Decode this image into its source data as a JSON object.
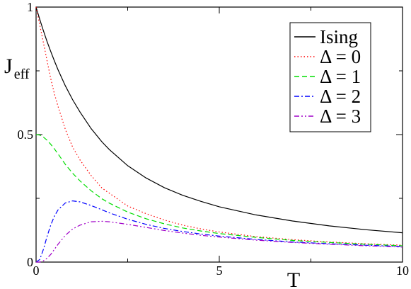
{
  "chart_data": {
    "type": "line",
    "xlabel": "T",
    "ylabel": "J",
    "ylabel_sub": "eff",
    "xlim": [
      0,
      10
    ],
    "ylim": [
      0,
      1
    ],
    "x_ticks": [
      {
        "value": 0,
        "label": "0"
      },
      {
        "value": 5,
        "label": "5"
      },
      {
        "value": 10,
        "label": "10"
      }
    ],
    "y_ticks": [
      {
        "value": 0,
        "label": "0"
      },
      {
        "value": 0.5,
        "label": "0.5"
      },
      {
        "value": 1,
        "label": "1"
      }
    ],
    "grid": false,
    "legend_position": "top-right",
    "x": [
      0,
      0.1,
      0.2,
      0.3,
      0.4,
      0.5,
      0.6,
      0.8,
      1.0,
      1.2,
      1.5,
      1.8,
      2.0,
      2.5,
      3.0,
      3.5,
      4.0,
      4.5,
      5.0,
      6.0,
      7.0,
      8.0,
      9.0,
      10.0
    ],
    "series": [
      {
        "name": "Ising",
        "color": "#000000",
        "dash": "",
        "values": [
          1.0,
          0.952,
          0.907,
          0.865,
          0.826,
          0.789,
          0.754,
          0.691,
          0.636,
          0.588,
          0.524,
          0.471,
          0.441,
          0.378,
          0.33,
          0.292,
          0.262,
          0.238,
          0.217,
          0.185,
          0.161,
          0.142,
          0.127,
          0.115
        ]
      },
      {
        "name": "Δ = 0",
        "color": "#ff0000",
        "dash": "1.5,3",
        "values": [
          1.0,
          0.93,
          0.86,
          0.79,
          0.72,
          0.66,
          0.61,
          0.52,
          0.45,
          0.4,
          0.34,
          0.29,
          0.27,
          0.22,
          0.19,
          0.165,
          0.145,
          0.13,
          0.118,
          0.1,
          0.088,
          0.079,
          0.072,
          0.066
        ]
      },
      {
        "name": "Δ = 1",
        "color": "#00dd00",
        "dash": "7,4",
        "values": [
          0.5,
          0.498,
          0.49,
          0.478,
          0.462,
          0.444,
          0.424,
          0.383,
          0.348,
          0.318,
          0.28,
          0.248,
          0.231,
          0.196,
          0.17,
          0.15,
          0.134,
          0.122,
          0.112,
          0.097,
          0.085,
          0.077,
          0.07,
          0.064
        ]
      },
      {
        "name": "Δ = 2",
        "color": "#0000ff",
        "dash": "7,3,2,3",
        "values": [
          0.0,
          0.01,
          0.05,
          0.1,
          0.145,
          0.18,
          0.205,
          0.232,
          0.24,
          0.236,
          0.222,
          0.205,
          0.193,
          0.168,
          0.148,
          0.132,
          0.12,
          0.11,
          0.102,
          0.089,
          0.079,
          0.072,
          0.066,
          0.061
        ]
      },
      {
        "name": "Δ = 3",
        "color": "#a000c8",
        "dash": "7,3,2,3,2,3",
        "values": [
          0.0,
          0.0,
          0.005,
          0.015,
          0.03,
          0.05,
          0.07,
          0.105,
          0.13,
          0.145,
          0.158,
          0.16,
          0.158,
          0.148,
          0.136,
          0.124,
          0.114,
          0.105,
          0.098,
          0.086,
          0.077,
          0.07,
          0.064,
          0.059
        ]
      }
    ]
  }
}
